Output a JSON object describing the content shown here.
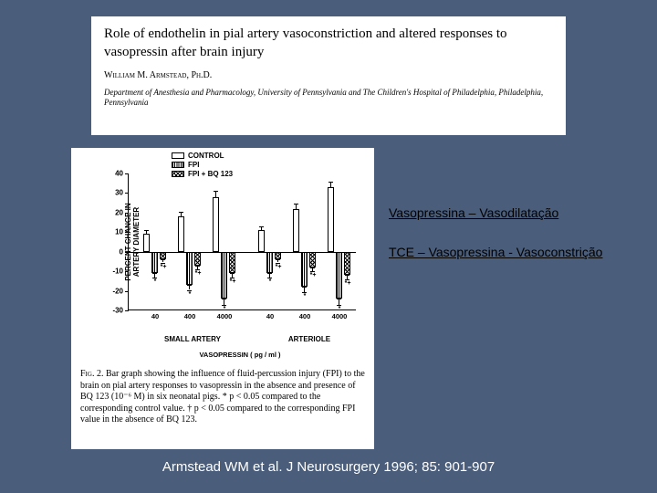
{
  "header": {
    "title": "Role of endothelin in pial artery vasoconstriction and altered responses to vasopressin after brain injury",
    "author": "William M. Armstead, Ph.D.",
    "affiliation": "Department of Anesthesia and Pharmacology, University of Pennsylvania and The Children's Hospital of Philadelphia, Philadelphia, Pennsylvania"
  },
  "annotations": {
    "line1": "Vasopressina – Vasodilatação",
    "line2": "TCE – Vasopressina - Vasoconstrição"
  },
  "citation": "Armstead WM et al. J Neurosurgery 1996; 85: 901-907",
  "chart": {
    "type": "bar",
    "y_title": "PERCENT CHANGE IN\nARTERY DIAMETER",
    "y_min": -30,
    "y_max": 40,
    "y_step": 10,
    "y_ticks": [
      -30,
      -20,
      -10,
      0,
      10,
      20,
      30,
      40
    ],
    "legend": [
      {
        "key": "control",
        "label": "CONTROL"
      },
      {
        "key": "fpi",
        "label": "FPI"
      },
      {
        "key": "bq",
        "label": "FPI + BQ 123"
      }
    ],
    "panels": [
      {
        "label": "SMALL ARTERY",
        "x_labels": [
          "40",
          "400",
          "4000"
        ]
      },
      {
        "label": "ARTERIOLE",
        "x_labels": [
          "40",
          "400",
          "4000"
        ]
      }
    ],
    "x_axis_title": "VASOPRESSIN ( pg / ml )",
    "groups": [
      {
        "x": 16,
        "bars": [
          {
            "k": "control",
            "v": 9,
            "e": 2
          },
          {
            "k": "fpi",
            "v": -11,
            "e": 2,
            "sig": "*"
          },
          {
            "k": "bq",
            "v": -4,
            "e": 1.5,
            "sig": "*+"
          }
        ]
      },
      {
        "x": 54,
        "bars": [
          {
            "k": "control",
            "v": 18,
            "e": 2.5
          },
          {
            "k": "fpi",
            "v": -17,
            "e": 2.5,
            "sig": "*"
          },
          {
            "k": "bq",
            "v": -7,
            "e": 2,
            "sig": "*+"
          }
        ]
      },
      {
        "x": 92,
        "bars": [
          {
            "k": "control",
            "v": 28,
            "e": 3
          },
          {
            "k": "fpi",
            "v": -24,
            "e": 3,
            "sig": "*"
          },
          {
            "k": "bq",
            "v": -11,
            "e": 2,
            "sig": "*+"
          }
        ]
      },
      {
        "x": 142,
        "bars": [
          {
            "k": "control",
            "v": 11,
            "e": 2
          },
          {
            "k": "fpi",
            "v": -11,
            "e": 2,
            "sig": "*"
          },
          {
            "k": "bq",
            "v": -4,
            "e": 1.5,
            "sig": "*+"
          }
        ]
      },
      {
        "x": 180,
        "bars": [
          {
            "k": "control",
            "v": 22,
            "e": 2.5
          },
          {
            "k": "fpi",
            "v": -18,
            "e": 2.5,
            "sig": "*"
          },
          {
            "k": "bq",
            "v": -8,
            "e": 2,
            "sig": "*+"
          }
        ]
      },
      {
        "x": 218,
        "bars": [
          {
            "k": "control",
            "v": 33,
            "e": 3
          },
          {
            "k": "fpi",
            "v": -24,
            "e": 3,
            "sig": "*"
          },
          {
            "k": "bq",
            "v": -12,
            "e": 2,
            "sig": "*+"
          }
        ]
      }
    ],
    "caption_lead": "Fig. 2.",
    "caption_body": " Bar graph showing the influence of fluid-percussion injury (FPI) to the brain on pial artery responses to vasopressin in the absence and presence of BQ 123 (10⁻⁶ M) in six neonatal pigs. * p < 0.05 compared to the corresponding control value. † p < 0.05 compared to the corresponding FPI value in the absence of BQ 123."
  },
  "colors": {
    "background": "#4a5d7a",
    "panel_bg": "#ffffff",
    "text": "#000000",
    "citation_text": "#ffffff"
  }
}
